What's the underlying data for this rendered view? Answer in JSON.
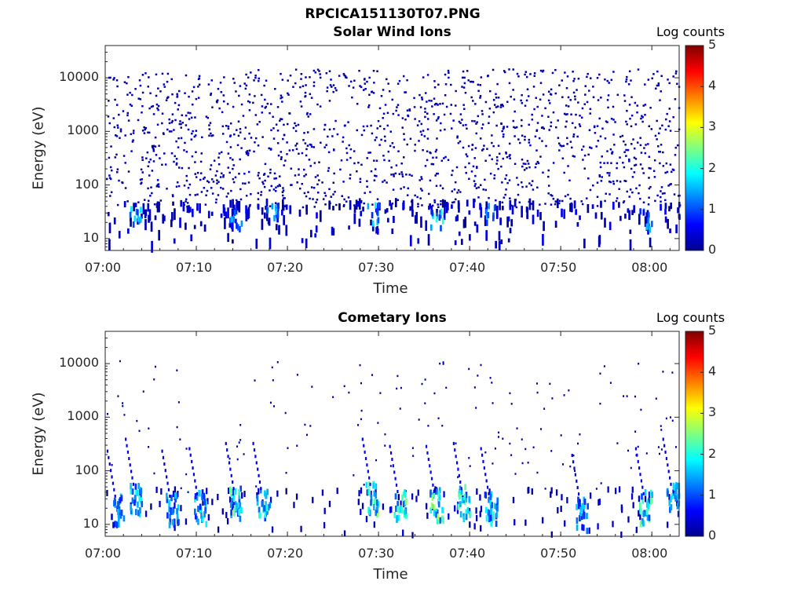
{
  "figure": {
    "title": "RPCICA151130T07.PNG"
  },
  "chart_data": [
    {
      "type": "heatmap",
      "title": "Solar Wind Ions",
      "xlabel": "Time",
      "ylabel": "Energy (eV)",
      "x_ticks": [
        "07:00",
        "07:10",
        "07:20",
        "07:30",
        "07:40",
        "07:50",
        "08:00"
      ],
      "x_range": [
        "07:00",
        "08:03"
      ],
      "y_ticks": [
        "10",
        "100",
        "1000",
        "10000"
      ],
      "y_scale": "log",
      "y_range": [
        6,
        40000
      ],
      "colorbar_label": "Log counts",
      "colorbar_ticks": [
        "0",
        "1",
        "2",
        "3",
        "4",
        "5"
      ],
      "colorbar_range": [
        0,
        5
      ],
      "colormap": "jet",
      "description_of_content": "sparse counts (mostly log 0-0.5) spread across 40 eV-20 keV; denser low-energy bursts near 10-40 eV",
      "hotspots": [
        {
          "time": "07:03",
          "energy": 25,
          "level": 1.8
        },
        {
          "time": "07:14",
          "energy": 22,
          "level": 1.5
        },
        {
          "time": "07:18",
          "energy": 30,
          "level": 1.7
        },
        {
          "time": "07:29",
          "energy": 28,
          "level": 1.8
        },
        {
          "time": "07:36",
          "energy": 22,
          "level": 2.0
        },
        {
          "time": "07:42",
          "energy": 28,
          "level": 1.6
        },
        {
          "time": "07:59",
          "energy": 22,
          "level": 1.5
        }
      ]
    },
    {
      "type": "heatmap",
      "title": "Cometary Ions",
      "xlabel": "Time",
      "ylabel": "Energy (eV)",
      "x_ticks": [
        "07:00",
        "07:10",
        "07:20",
        "07:30",
        "07:40",
        "07:50",
        "08:00"
      ],
      "x_range": [
        "07:00",
        "08:03"
      ],
      "y_ticks": [
        "10",
        "100",
        "1000",
        "10000"
      ],
      "y_scale": "log",
      "y_range": [
        6,
        40000
      ],
      "colorbar_label": "Log counts",
      "colorbar_ticks": [
        "0",
        "1",
        "2",
        "3",
        "4",
        "5"
      ],
      "colorbar_range": [
        0,
        5
      ],
      "colormap": "jet",
      "description_of_content": "periodic bursts of cometary ions at 10-50 eV with dispersive tails to a few hundred eV",
      "hotspots": [
        {
          "time": "07:01",
          "energy": 18,
          "level": 1.5
        },
        {
          "time": "07:03",
          "energy": 30,
          "level": 2.0
        },
        {
          "time": "07:07",
          "energy": 18,
          "level": 1.6
        },
        {
          "time": "07:10",
          "energy": 20,
          "level": 1.8
        },
        {
          "time": "07:14",
          "energy": 25,
          "level": 2.2
        },
        {
          "time": "07:17",
          "energy": 25,
          "level": 2.0
        },
        {
          "time": "07:29",
          "energy": 30,
          "level": 2.5
        },
        {
          "time": "07:32",
          "energy": 22,
          "level": 2.3
        },
        {
          "time": "07:36",
          "energy": 22,
          "level": 2.6
        },
        {
          "time": "07:39",
          "energy": 25,
          "level": 2.2
        },
        {
          "time": "07:42",
          "energy": 20,
          "level": 2.0
        },
        {
          "time": "07:52",
          "energy": 15,
          "level": 1.6
        },
        {
          "time": "07:59",
          "energy": 20,
          "level": 2.3
        },
        {
          "time": "08:02",
          "energy": 30,
          "level": 1.8
        }
      ]
    }
  ]
}
